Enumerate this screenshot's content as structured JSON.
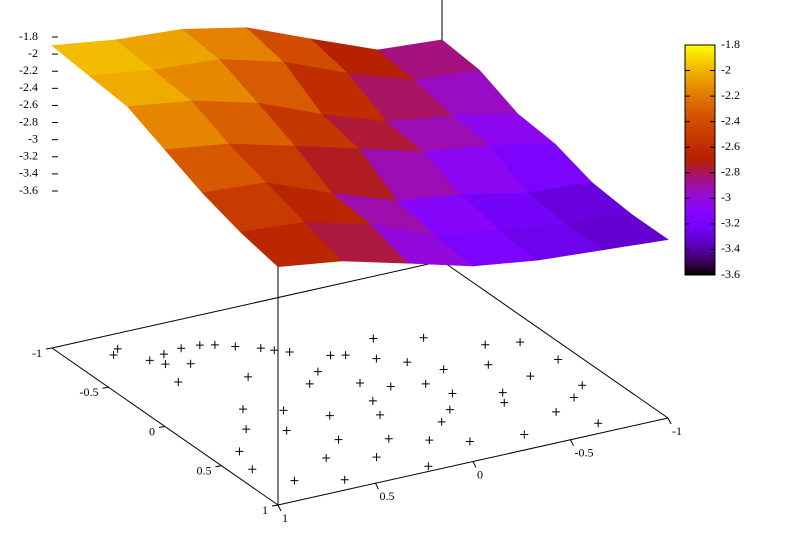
{
  "chart_data": {
    "type": "surface3d",
    "xlim": [
      -1,
      1
    ],
    "xticks": [
      -1,
      -0.5,
      0,
      0.5,
      1
    ],
    "ylim": [
      -1,
      1
    ],
    "yticks": [
      -1,
      -0.5,
      0,
      0.5,
      1
    ],
    "zlim": [
      -3.6,
      -1.8
    ],
    "zticks": [
      -1.8,
      -2,
      -2.2,
      -2.4,
      -2.6,
      -2.8,
      -3,
      -3.2,
      -3.4,
      -3.6
    ],
    "cblim": [
      -3.6,
      -1.8
    ],
    "cbticks": [
      -1.8,
      -2,
      -2.2,
      -2.4,
      -2.6,
      -2.8,
      -3,
      -3.2,
      -3.4,
      -3.6
    ],
    "surface": {
      "x": [
        -1,
        -0.67,
        -0.33,
        0,
        0.33,
        0.67,
        1
      ],
      "y": [
        -1,
        -0.67,
        -0.33,
        0,
        0.33,
        0.67,
        1
      ],
      "z": [
        [
          -2.85,
          -2.9,
          -3.1,
          -3.15,
          -3.3,
          -3.35,
          -3.35
        ],
        [
          -2.8,
          -2.85,
          -2.95,
          -3.0,
          -3.25,
          -3.3,
          -3.3
        ],
        [
          -2.5,
          -2.6,
          -2.85,
          -2.9,
          -3.1,
          -3.2,
          -3.25
        ],
        [
          -2.2,
          -2.3,
          -2.6,
          -2.7,
          -3.0,
          -3.1,
          -3.15
        ],
        [
          -2.05,
          -2.1,
          -2.3,
          -2.5,
          -2.75,
          -2.8,
          -2.95
        ],
        [
          -2.0,
          -2.05,
          -2.1,
          -2.3,
          -2.45,
          -2.6,
          -2.75
        ],
        [
          -1.9,
          -1.95,
          -2.0,
          -2.2,
          -2.4,
          -2.55,
          -2.65
        ]
      ]
    },
    "points": {
      "color": "#000000",
      "x": [
        -0.67,
        -0.7,
        -0.72,
        -0.71,
        -0.68,
        -0.62,
        -0.55,
        -0.5,
        -0.45,
        -0.33,
        -0.3,
        -0.6,
        -0.55,
        -0.8,
        -0.85,
        -0.2,
        -0.1,
        0,
        0.1,
        0.2,
        -0.1,
        0.05,
        0.15,
        0.3,
        0.4,
        0.5,
        0.45,
        0.35,
        0.25,
        0.1,
        0,
        0.2,
        0.3,
        0.5,
        0.6,
        0.7,
        0.8,
        0.85,
        0.7,
        0.6,
        0.5,
        0.3,
        0.1,
        -0.1,
        -0.3,
        -0.4,
        -0.2,
        0.9,
        0.8,
        0.6,
        0.4,
        -0.3,
        -0.4,
        0.65,
        0.95,
        0.9,
        0.2,
        -0.05,
        0.75,
        0.55
      ],
      "y": [
        0.69,
        0.6,
        0.5,
        0.41,
        0.35,
        0.28,
        0.19,
        0.15,
        0.1,
        -0.04,
        -0.1,
        0.65,
        0.55,
        0.8,
        0.75,
        0.1,
        0.2,
        0,
        -0.1,
        0.05,
        -0.3,
        -0.4,
        -0.25,
        -0.3,
        -0.5,
        -0.45,
        -0.2,
        0.1,
        0.3,
        0.45,
        0.6,
        0.7,
        0.55,
        0.4,
        0.2,
        0.05,
        -0.1,
        -0.35,
        -0.6,
        -0.75,
        -0.85,
        -0.7,
        -0.6,
        -0.7,
        -0.5,
        -0.3,
        -0.2,
        0.6,
        0.8,
        0.9,
        0.85,
        0.4,
        0.7,
        0.55,
        0.2,
        -0.7,
        -0.9,
        -0.85,
        0.35,
        -0.1
      ]
    }
  }
}
